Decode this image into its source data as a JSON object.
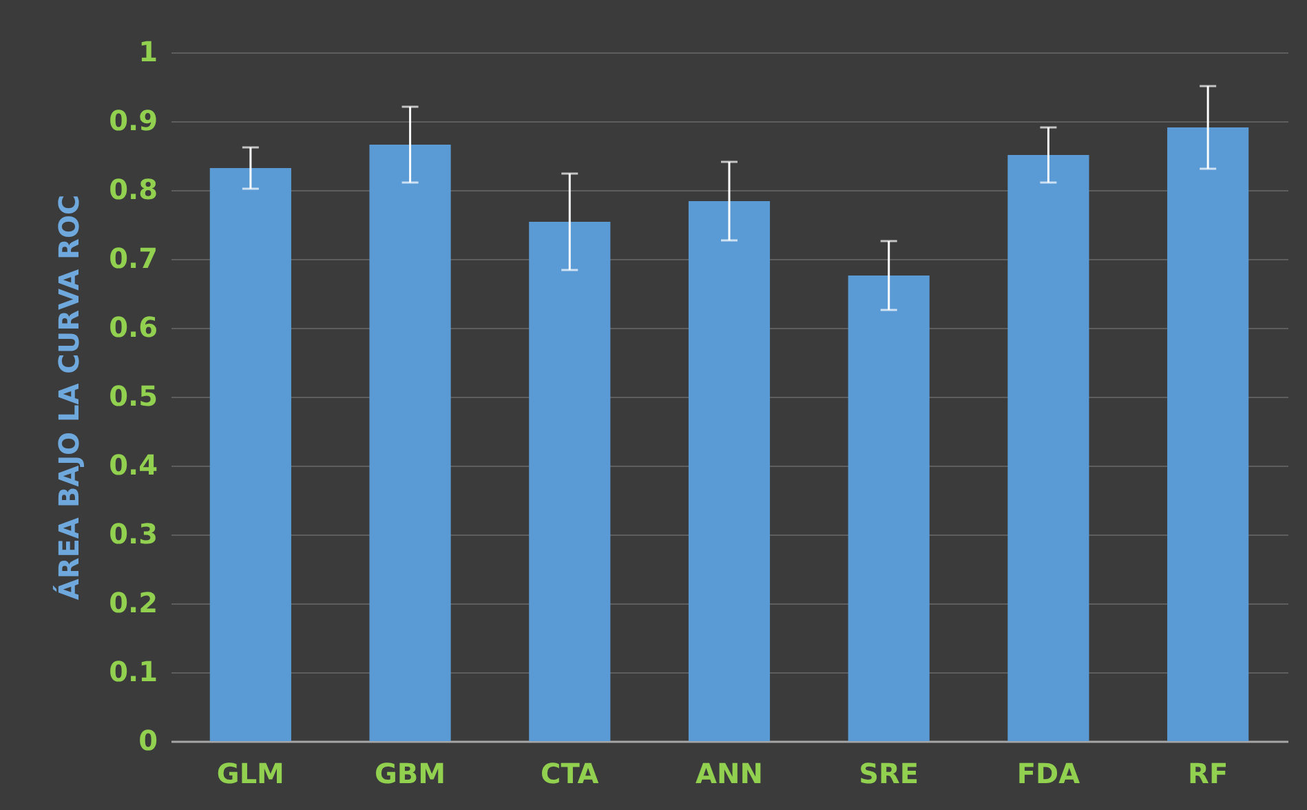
{
  "chart_data": {
    "type": "bar",
    "ylabel": "ÁREA BAJO LA CURVA ROC",
    "categories": [
      "GLM",
      "GBM",
      "CTA",
      "ANN",
      "SRE",
      "FDA",
      "RF"
    ],
    "values": [
      0.832,
      0.866,
      0.754,
      0.784,
      0.676,
      0.851,
      0.891
    ],
    "errors": [
      0.03,
      0.055,
      0.07,
      0.057,
      0.05,
      0.04,
      0.06
    ],
    "color": "#5b9bd5",
    "ylim": [
      0,
      1
    ],
    "yticks": [
      0,
      0.1,
      0.2,
      0.3,
      0.4,
      0.5,
      0.6,
      0.7,
      0.8,
      0.9,
      1
    ],
    "grid": "y"
  }
}
